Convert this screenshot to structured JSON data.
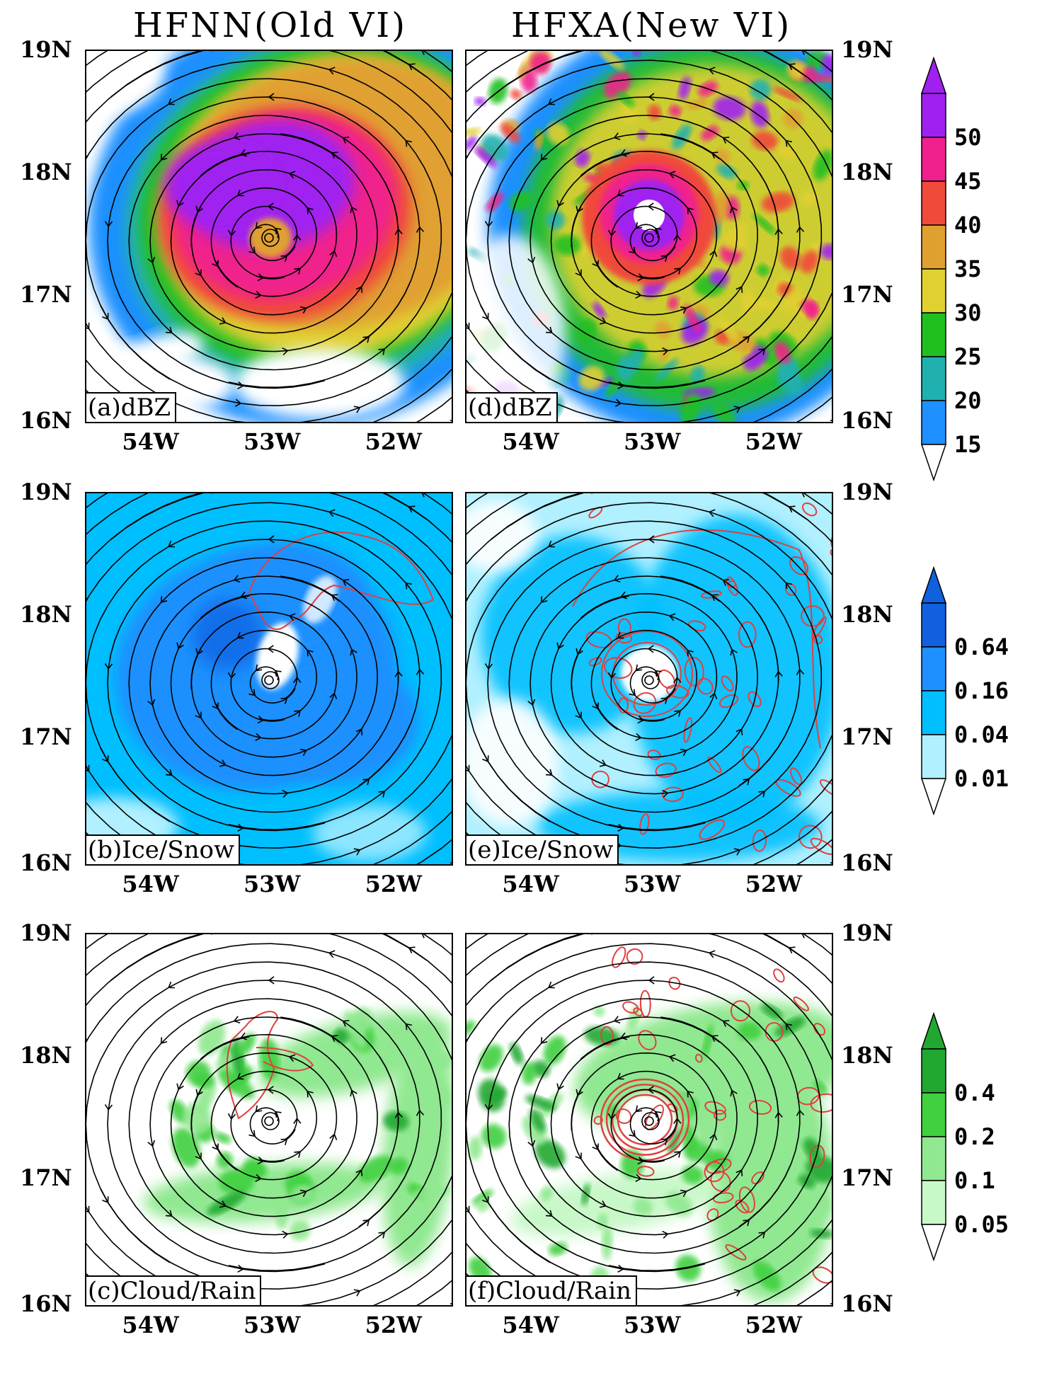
{
  "titles": {
    "left": "HFNN(Old VI)",
    "right": "HFXA(New VI)"
  },
  "axes": {
    "lat_labels": [
      "19N",
      "18N",
      "17N",
      "16N"
    ],
    "lon_labels": [
      "54W",
      "53W",
      "52W"
    ]
  },
  "panels": {
    "a": {
      "label": "(a)dBZ"
    },
    "b": {
      "label": "(b)Ice/Snow"
    },
    "c": {
      "label": "(c)Cloud/Rain"
    },
    "d": {
      "label": "(d)dBZ"
    },
    "e": {
      "label": "(e)Ice/Snow"
    },
    "f": {
      "label": "(f)Cloud/Rain"
    }
  },
  "colorbars": {
    "dbz": {
      "labels": [
        "50",
        "45",
        "40",
        "35",
        "30",
        "25",
        "20",
        "15"
      ],
      "colors": [
        "#a020f0",
        "#f0208c",
        "#f04a3a",
        "#e0a030",
        "#e0d030",
        "#20c020",
        "#20b0b0",
        "#1e90ff"
      ]
    },
    "ice": {
      "labels": [
        "0.64",
        "0.16",
        "0.04",
        "0.01"
      ],
      "colors": [
        "#1060e0",
        "#1e90ff",
        "#00bfff",
        "#b0f0ff"
      ]
    },
    "cloud": {
      "labels": [
        "0.4",
        "0.2",
        "0.1",
        "0.05"
      ],
      "colors": [
        "#20a830",
        "#40d040",
        "#90e890",
        "#c8f8c8"
      ]
    }
  }
}
